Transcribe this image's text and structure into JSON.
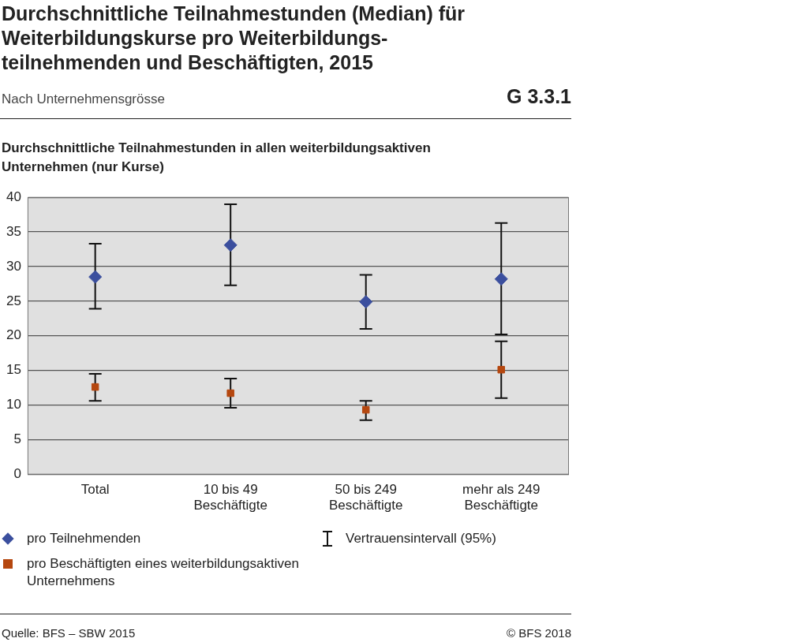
{
  "chart_data": {
    "type": "scatter",
    "title": "Durchschnittliche Teilnahmestunden (Median) für Weiterbildungskurse pro Weiterbildungs-teilnehmenden und Beschäftigten, 2015",
    "subtitle": "Nach Unternehmensgrösse",
    "ylabel": "Durchschnittliche Teilnahmestunden in allen weiterbildungsaktiven Unternehmen (nur Kurse)",
    "categories": [
      "Total",
      "10 bis 49 Beschäftigte",
      "50 bis 249 Beschäftigte",
      "mehr als 249 Beschäftigte"
    ],
    "series": [
      {
        "name": "pro Teilnehmenden",
        "color": "#3b4f9e",
        "marker": "diamond",
        "values": [
          28.5,
          33.1,
          24.9,
          28.2
        ],
        "errors": [
          [
            23.9,
            33.3
          ],
          [
            27.3,
            39.0
          ],
          [
            21.0,
            28.8
          ],
          [
            20.2,
            36.3
          ]
        ]
      },
      {
        "name": "pro Beschäftigten eines weiterbildungsaktiven Unternehmens",
        "color": "#b5470f",
        "marker": "square",
        "values": [
          12.6,
          11.7,
          9.3,
          15.1
        ],
        "errors": [
          [
            10.6,
            14.5
          ],
          [
            9.6,
            13.8
          ],
          [
            7.8,
            10.6
          ],
          [
            11.0,
            19.2
          ]
        ]
      }
    ],
    "ylim": [
      0,
      40
    ],
    "yticks": [
      0,
      5,
      10,
      15,
      20,
      25,
      30,
      35,
      40
    ],
    "grid": "y",
    "legend": "bottom",
    "annotations": [
      "G 3.3.1",
      "Vertrauensintervall (95%)",
      "Quelle: BFS – SBW 2015",
      "© BFS 2018"
    ]
  }
}
